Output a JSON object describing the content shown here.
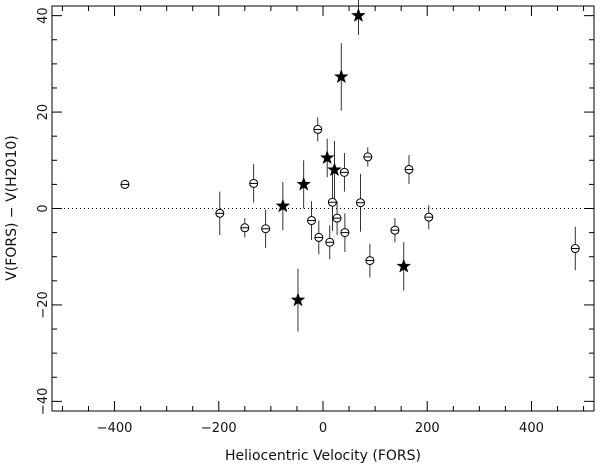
{
  "chart_data": {
    "type": "scatter",
    "title": "",
    "xlabel": "Heliocentric Velocity (FORS)",
    "ylabel": "V(FORS) − V(H2010)",
    "xlim": [
      -520,
      520
    ],
    "ylim": [
      -42,
      42
    ],
    "x_ticks": [
      -400,
      -200,
      0,
      200,
      400
    ],
    "y_ticks": [
      -40,
      -20,
      0,
      20,
      40
    ],
    "x_tick_labels": [
      "−400",
      "−200",
      "0",
      "200",
      "400"
    ],
    "y_tick_labels": [
      "−40",
      "−20",
      "0",
      "20",
      "40"
    ],
    "grid": false,
    "reference_line": {
      "y": 0,
      "style": "dotted"
    },
    "series": [
      {
        "marker": "circle-plus",
        "points": [
          {
            "x": -380,
            "y": 5.0,
            "err": 0.8
          },
          {
            "x": -198,
            "y": -1.0,
            "err": 4.5
          },
          {
            "x": -150,
            "y": -4.0,
            "err": 2.0
          },
          {
            "x": -133,
            "y": 5.2,
            "err": 4.0
          },
          {
            "x": -110,
            "y": -4.2,
            "err": 4.0
          },
          {
            "x": -22,
            "y": -2.5,
            "err": 4.0
          },
          {
            "x": -10,
            "y": 16.4,
            "err": 2.5
          },
          {
            "x": -8,
            "y": -6.0,
            "err": 3.5
          },
          {
            "x": 13,
            "y": -7.0,
            "err": 3.5
          },
          {
            "x": 18,
            "y": 1.3,
            "err": 6.0
          },
          {
            "x": 27,
            "y": -2.0,
            "err": 3.5
          },
          {
            "x": 41,
            "y": 7.5,
            "err": 4.0
          },
          {
            "x": 42,
            "y": -5.0,
            "err": 4.0
          },
          {
            "x": 72,
            "y": 1.2,
            "err": 6.0
          },
          {
            "x": 86,
            "y": 10.7,
            "err": 2.0
          },
          {
            "x": 90,
            "y": -10.8,
            "err": 3.5
          },
          {
            "x": 138,
            "y": -4.5,
            "err": 2.5
          },
          {
            "x": 165,
            "y": 8.1,
            "err": 3.0
          },
          {
            "x": 203,
            "y": -1.8,
            "err": 2.5
          },
          {
            "x": 484,
            "y": -8.3,
            "err": 4.5
          }
        ]
      },
      {
        "marker": "star",
        "points": [
          {
            "x": -77,
            "y": 0.5,
            "err": 5.0
          },
          {
            "x": -48,
            "y": -19.0,
            "err": 6.5
          },
          {
            "x": -37,
            "y": 5.0,
            "err": 5.0
          },
          {
            "x": 8,
            "y": 10.5,
            "err": 4.0
          },
          {
            "x": 22,
            "y": 8.0,
            "err": 6.0
          },
          {
            "x": 35,
            "y": 27.3,
            "err": 7.0
          },
          {
            "x": 68,
            "y": 40.0,
            "err": 4.0
          },
          {
            "x": 155,
            "y": -12.0,
            "err": 5.0
          }
        ]
      }
    ]
  }
}
